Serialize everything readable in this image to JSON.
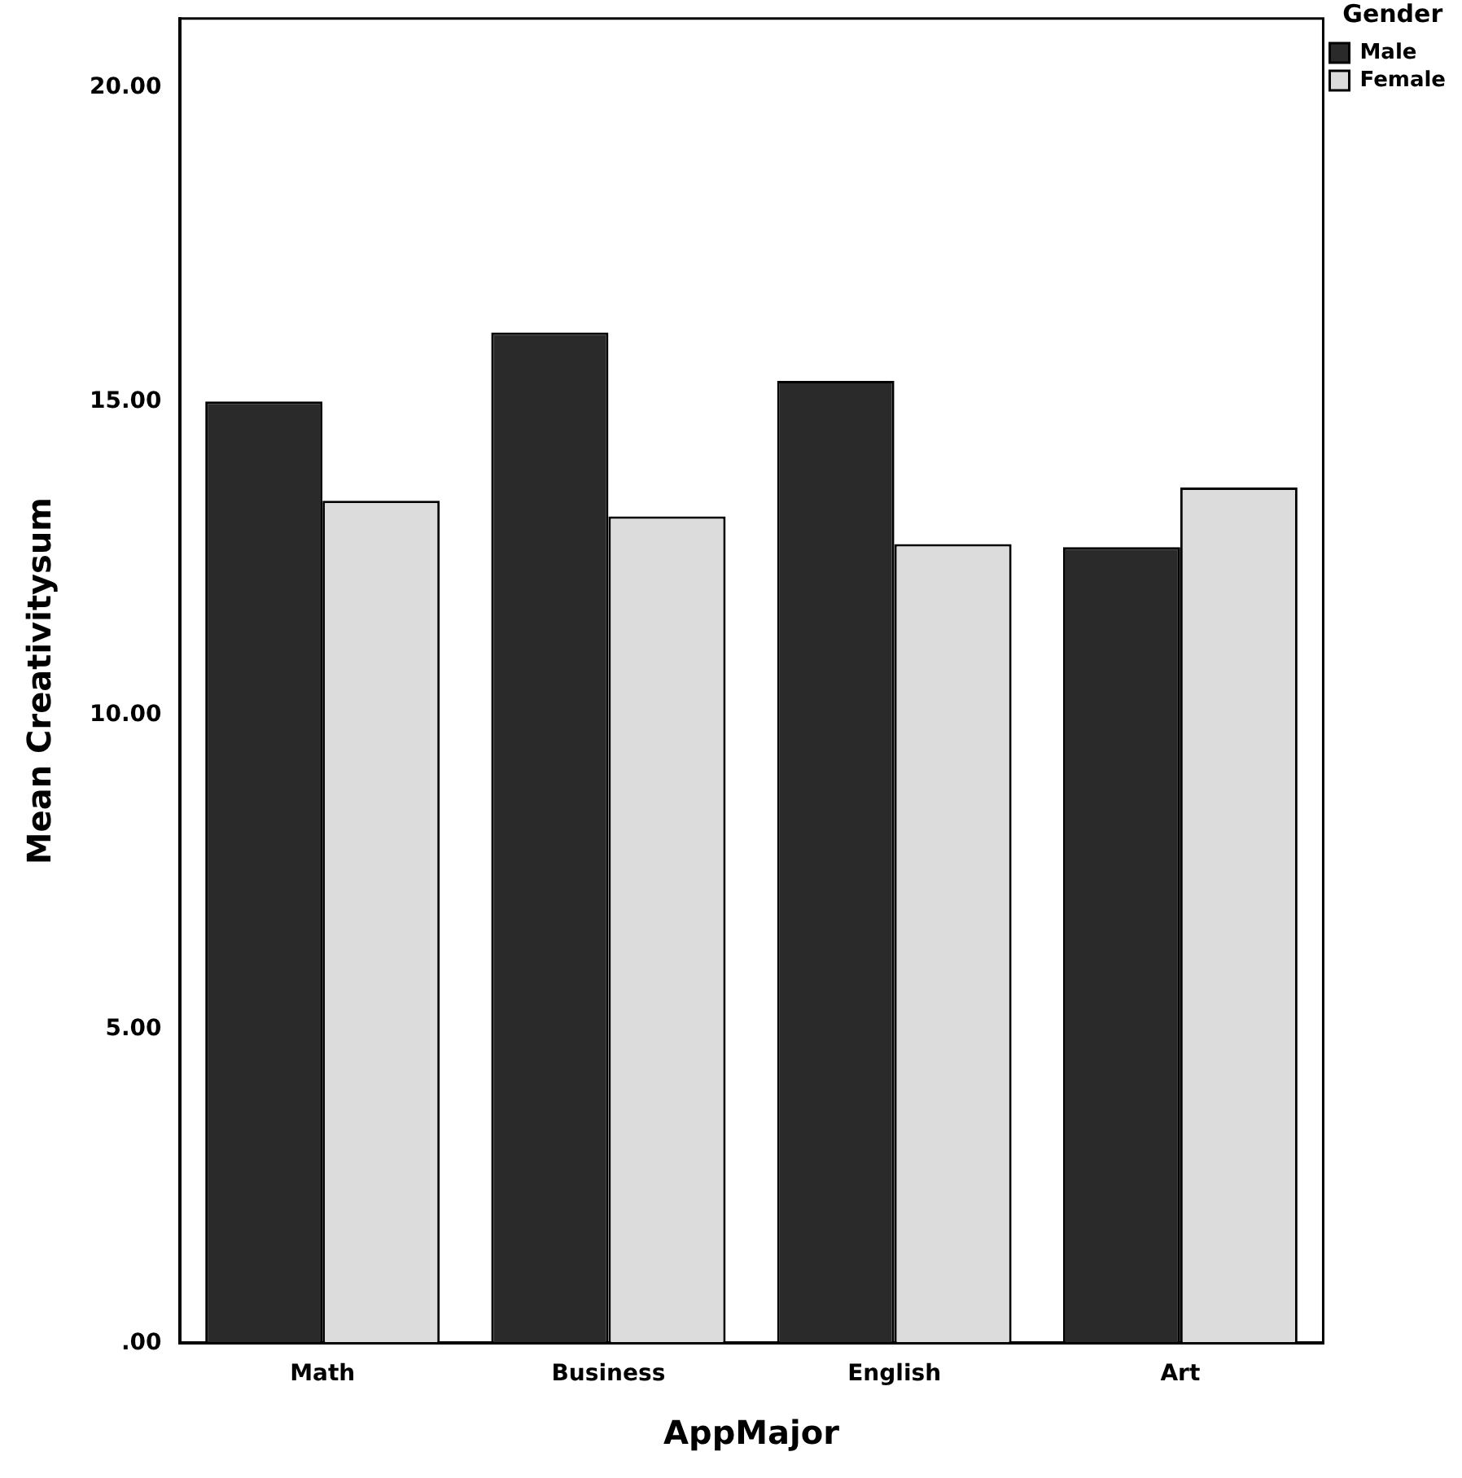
{
  "chart_data": {
    "type": "bar",
    "xlabel": "AppMajor",
    "ylabel": "Mean Creativitysum",
    "legend_title": "Gender",
    "categories": [
      "Math",
      "Business",
      "English",
      "Art"
    ],
    "series": [
      {
        "name": "Male",
        "color": "#2a2a2a",
        "values": [
          15.0,
          16.1,
          15.33,
          12.68
        ]
      },
      {
        "name": "Female",
        "color": "#dcdcdc",
        "values": [
          13.42,
          13.17,
          12.73,
          13.63
        ]
      }
    ],
    "ylim": [
      0,
      21.1
    ],
    "yticks": [
      {
        "value": 0,
        "label": ".00"
      },
      {
        "value": 5,
        "label": "5.00"
      },
      {
        "value": 10,
        "label": "10.00"
      },
      {
        "value": 15,
        "label": "15.00"
      },
      {
        "value": 20,
        "label": "20.00"
      }
    ],
    "grid": false,
    "legend": "top right"
  }
}
